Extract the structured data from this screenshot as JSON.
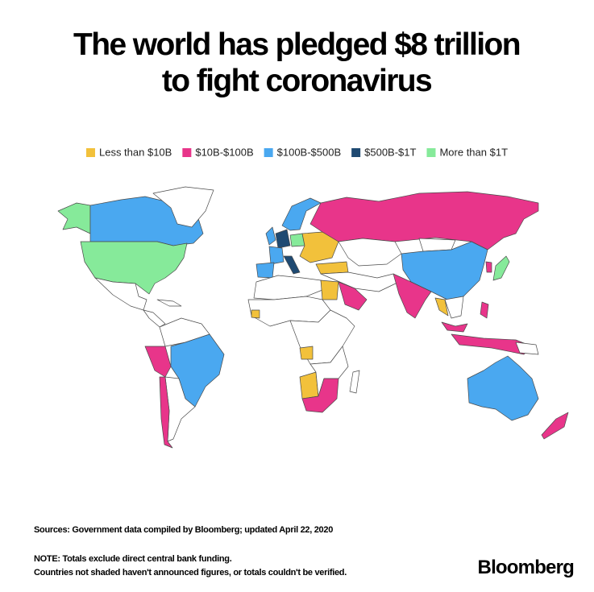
{
  "title_lines": [
    "The world has pledged $8 trillion",
    "to fight coronavirus"
  ],
  "legend": [
    {
      "label": "Less than $10B",
      "color": "#f2c13b"
    },
    {
      "label": "$10B-$100B",
      "color": "#e8358a"
    },
    {
      "label": "$100B-$500B",
      "color": "#4aa8f0"
    },
    {
      "label": "$500B-$1T",
      "color": "#1f4a72"
    },
    {
      "label": "More than $1T",
      "color": "#86ea9a"
    }
  ],
  "sources": "Sources: Government data compiled by Bloomberg; updated April 22, 2020",
  "note_lines": [
    "NOTE: Totals exclude direct central bank funding.",
    "Countries not shaded haven't announced figures, or totals couldn't be verified."
  ],
  "brand": "Bloomberg"
}
